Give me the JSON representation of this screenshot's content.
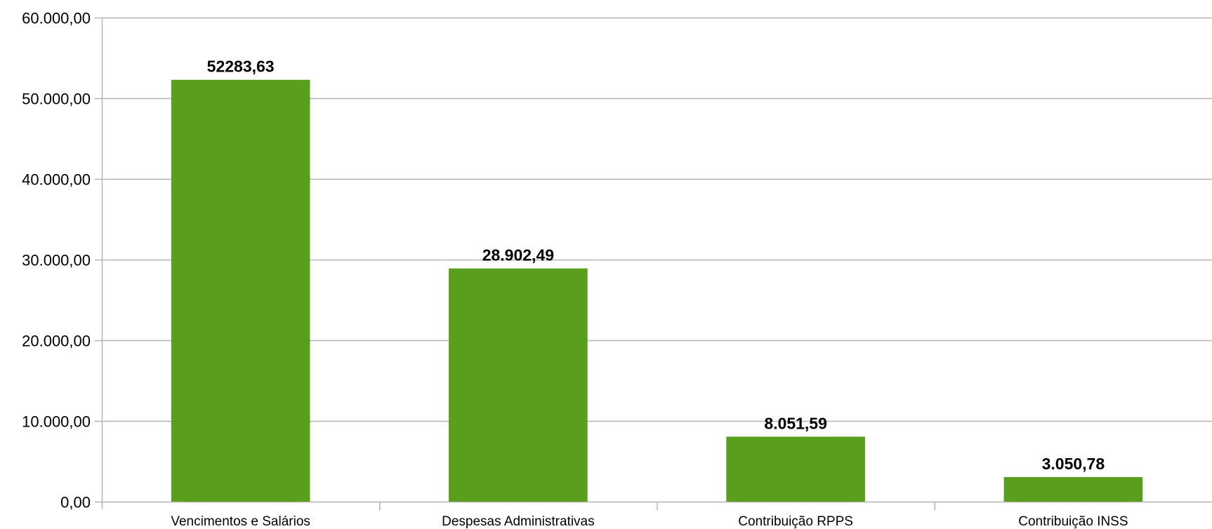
{
  "chart_data": {
    "type": "bar",
    "categories": [
      "Vencimentos e Salários",
      "Despesas Administrativas",
      "Contribuição RPPS",
      "Contribuição INSS"
    ],
    "values": [
      52283.63,
      28902.49,
      8051.59,
      3050.78
    ],
    "data_labels": [
      "52283,63",
      "28.902,49",
      "8.051,59",
      "3.050,78"
    ],
    "ylim": [
      0,
      60000
    ],
    "yticks": [
      0,
      10000,
      20000,
      30000,
      40000,
      50000,
      60000
    ],
    "ytick_labels": [
      "0,00",
      "10.000,00",
      "20.000,00",
      "30.000,00",
      "40.000,00",
      "50.000,00",
      "60.000,00"
    ],
    "grid": true,
    "legend": "none",
    "title": "",
    "xlabel": "",
    "ylabel": "",
    "colors": {
      "bar": "#5a9e1e",
      "grid": "#b3b3b3",
      "axis": "#b3b3b3",
      "text": "#000000"
    }
  }
}
